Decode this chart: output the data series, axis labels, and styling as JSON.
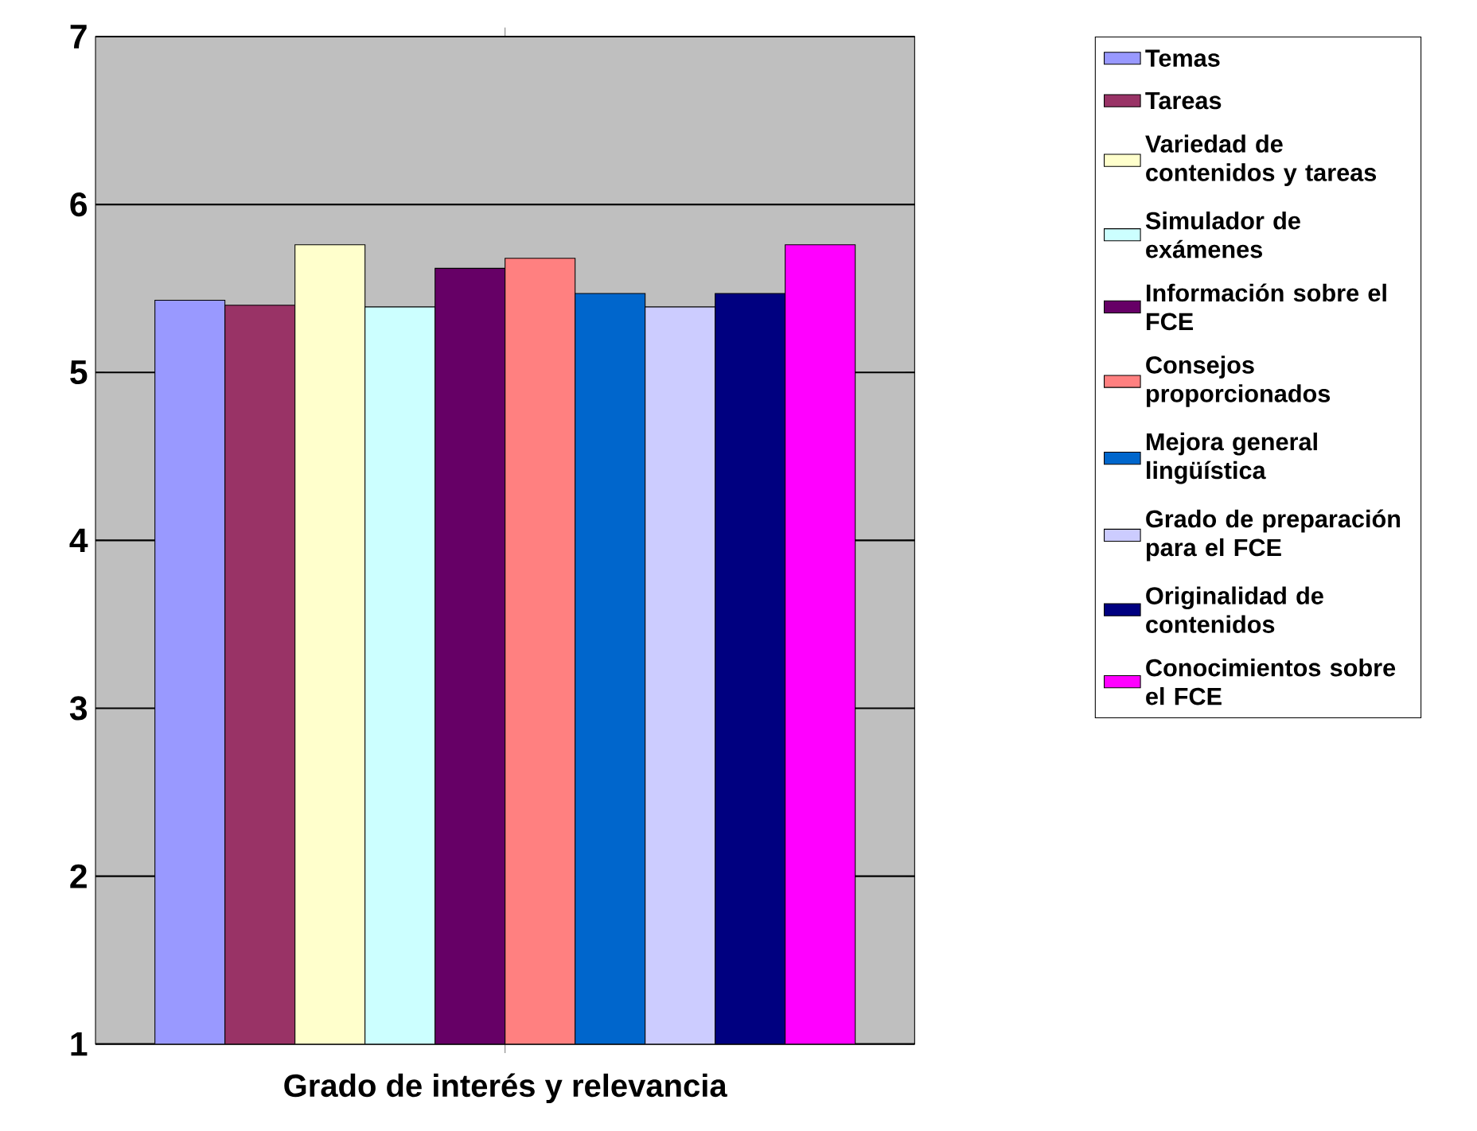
{
  "chart_data": {
    "type": "bar",
    "categories": [
      "Grado de interés y relevancia"
    ],
    "series": [
      {
        "name": "Temas",
        "color": "#9999ff",
        "values": [
          5.43
        ]
      },
      {
        "name": "Tareas",
        "color": "#993366",
        "values": [
          5.4
        ]
      },
      {
        "name": "Variedad de contenidos y tareas",
        "color": "#ffffcc",
        "values": [
          5.76
        ]
      },
      {
        "name": "Simulador de exámenes",
        "color": "#ccffff",
        "values": [
          5.39
        ]
      },
      {
        "name": "Información sobre el FCE",
        "color": "#660066",
        "values": [
          5.62
        ]
      },
      {
        "name": "Consejos proporcionados",
        "color": "#ff8080",
        "values": [
          5.68
        ]
      },
      {
        "name": "Mejora general lingüística",
        "color": "#0066cc",
        "values": [
          5.47
        ]
      },
      {
        "name": "Grado de preparación para el FCE",
        "color": "#ccccff",
        "values": [
          5.39
        ]
      },
      {
        "name": "Originalidad de contenidos",
        "color": "#000080",
        "values": [
          5.47
        ]
      },
      {
        "name": "Conocimientos sobre el FCE",
        "color": "#ff00ff",
        "values": [
          5.76
        ]
      }
    ],
    "ylim": [
      1,
      7
    ],
    "yticks": [
      1,
      2,
      3,
      4,
      5,
      6,
      7
    ],
    "grid": "y",
    "legend": "right"
  }
}
